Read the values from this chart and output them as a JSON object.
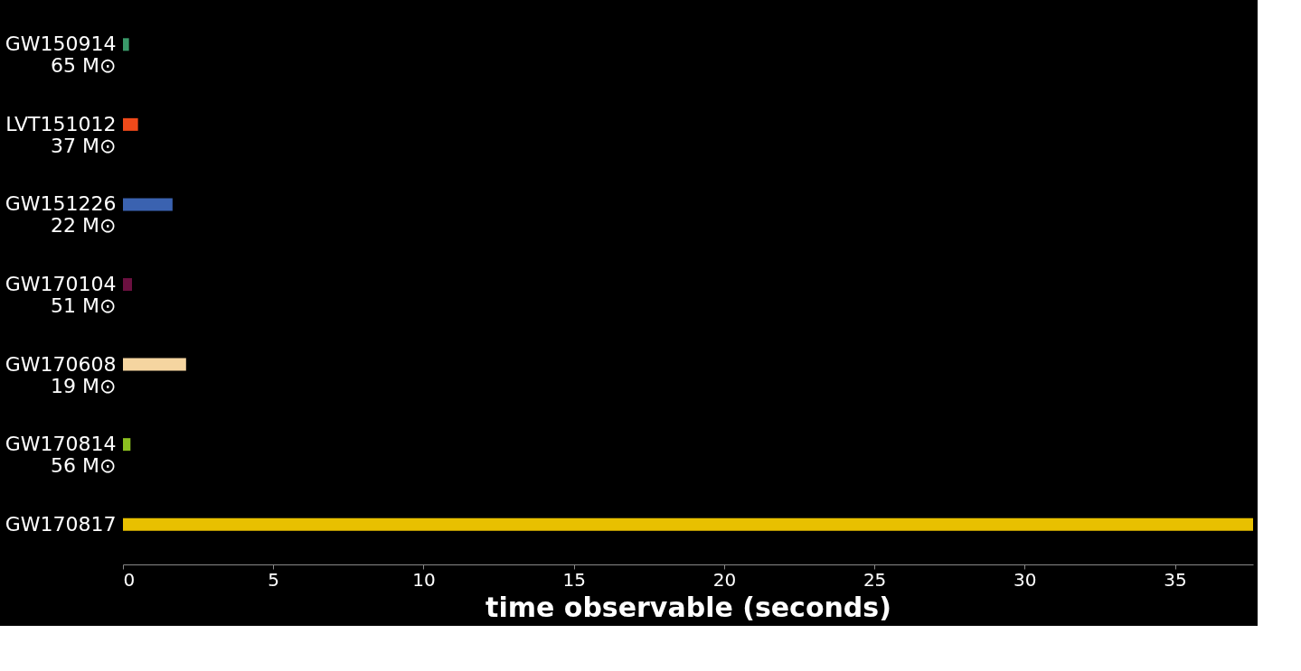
{
  "chart_data": {
    "type": "bar",
    "orientation": "horizontal",
    "categories": [
      "GW150914\n65 M⊙",
      "LVT151012\n37 M⊙",
      "GW151226\n22 M⊙",
      "GW170104\n51 M⊙",
      "GW170608\n19 M⊙",
      "GW170814\n56 M⊙",
      "GW170817"
    ],
    "values": [
      0.2,
      0.5,
      1.65,
      0.3,
      2.1,
      0.25,
      37.6
    ],
    "colors": [
      "#3a9a6a",
      "#f04a1a",
      "#3a62b0",
      "#6b1040",
      "#f5d5a0",
      "#8cc020",
      "#e8c000"
    ],
    "xlabel": "time observable (seconds)",
    "xlim": [
      0,
      37.6
    ],
    "xticks": [
      0,
      5,
      10,
      15,
      20,
      25,
      30,
      35
    ],
    "grid": false,
    "legend": false
  }
}
